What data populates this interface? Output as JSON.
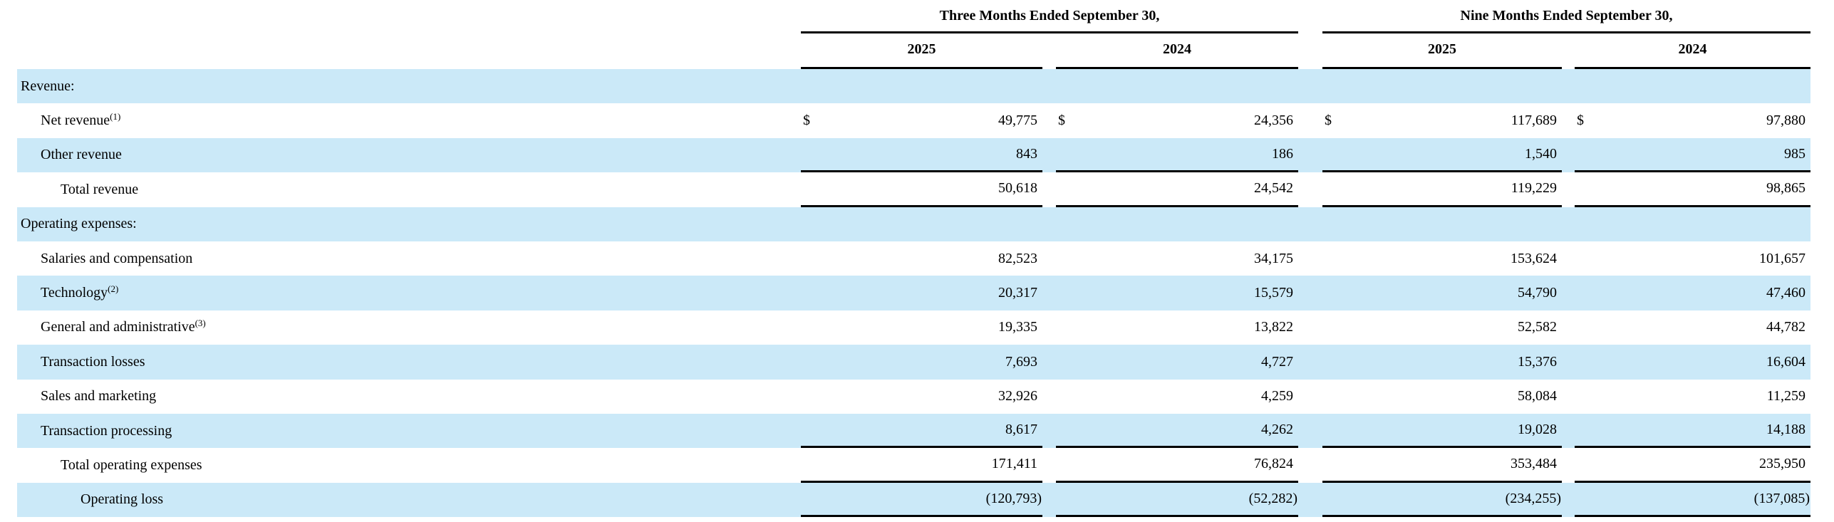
{
  "table": {
    "currency_symbol": "$",
    "colors": {
      "row_shade": "#cbe9f8",
      "rule": "#000000",
      "text": "#000000",
      "background": "#ffffff"
    },
    "groups": [
      {
        "label": "Three Months Ended September 30,",
        "years": [
          "2025",
          "2024"
        ]
      },
      {
        "label": "Nine Months Ended September 30,",
        "years": [
          "2025",
          "2024"
        ]
      }
    ],
    "rows": [
      {
        "label": "Revenue:",
        "indent": 0,
        "shaded": true,
        "dollar": false,
        "rule_below": false,
        "values": [
          "",
          "",
          "",
          ""
        ]
      },
      {
        "label": "Net revenue",
        "sup": "(1)",
        "indent": 1,
        "shaded": false,
        "dollar": true,
        "rule_below": false,
        "values": [
          "49,775",
          "24,356",
          "117,689",
          "97,880"
        ]
      },
      {
        "label": "Other revenue",
        "indent": 1,
        "shaded": true,
        "dollar": false,
        "rule_below": true,
        "values": [
          "843",
          "186",
          "1,540",
          "985"
        ]
      },
      {
        "label": "Total revenue",
        "indent": 2,
        "shaded": false,
        "dollar": false,
        "rule_below": true,
        "values": [
          "50,618",
          "24,542",
          "119,229",
          "98,865"
        ]
      },
      {
        "label": "Operating expenses:",
        "indent": 0,
        "shaded": true,
        "dollar": false,
        "rule_below": false,
        "values": [
          "",
          "",
          "",
          ""
        ]
      },
      {
        "label": "Salaries and compensation",
        "indent": 1,
        "shaded": false,
        "dollar": false,
        "rule_below": false,
        "values": [
          "82,523",
          "34,175",
          "153,624",
          "101,657"
        ]
      },
      {
        "label": "Technology",
        "sup": "(2)",
        "indent": 1,
        "shaded": true,
        "dollar": false,
        "rule_below": false,
        "values": [
          "20,317",
          "15,579",
          "54,790",
          "47,460"
        ]
      },
      {
        "label": "General and administrative",
        "sup": "(3)",
        "indent": 1,
        "shaded": false,
        "dollar": false,
        "rule_below": false,
        "values": [
          "19,335",
          "13,822",
          "52,582",
          "44,782"
        ]
      },
      {
        "label": "Transaction losses",
        "indent": 1,
        "shaded": true,
        "dollar": false,
        "rule_below": false,
        "values": [
          "7,693",
          "4,727",
          "15,376",
          "16,604"
        ]
      },
      {
        "label": "Sales and marketing",
        "indent": 1,
        "shaded": false,
        "dollar": false,
        "rule_below": false,
        "values": [
          "32,926",
          "4,259",
          "58,084",
          "11,259"
        ]
      },
      {
        "label": "Transaction processing",
        "indent": 1,
        "shaded": true,
        "dollar": false,
        "rule_below": true,
        "values": [
          "8,617",
          "4,262",
          "19,028",
          "14,188"
        ]
      },
      {
        "label": "Total operating expenses",
        "indent": 2,
        "shaded": false,
        "dollar": false,
        "rule_below": true,
        "values": [
          "171,411",
          "76,824",
          "353,484",
          "235,950"
        ]
      },
      {
        "label": "Operating loss",
        "indent": 3,
        "shaded": true,
        "dollar": false,
        "rule_below": true,
        "values": [
          "(120,793)",
          "(52,282)",
          "(234,255)",
          "(137,085)"
        ]
      }
    ]
  }
}
